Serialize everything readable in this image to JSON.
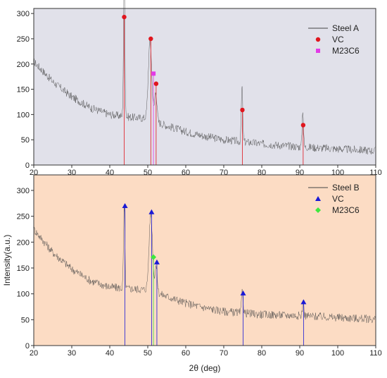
{
  "chart_data": [
    {
      "type": "line",
      "panel": "top",
      "background": "#e1e1ea",
      "xlim": [
        20,
        110
      ],
      "ylim": [
        0,
        310
      ],
      "xticks": [
        20,
        30,
        40,
        50,
        60,
        70,
        80,
        90,
        100,
        110
      ],
      "yticks": [
        0,
        50,
        100,
        150,
        200,
        250,
        300
      ],
      "xticks_labeled": false,
      "legend_position": "top-right",
      "series": [
        {
          "name": "Steel A",
          "kind": "line",
          "color": "#444444",
          "baseline": [
            [
              20,
              205
            ],
            [
              25,
              165
            ],
            [
              30,
              135
            ],
            [
              35,
              113
            ],
            [
              40,
              100
            ],
            [
              45,
              95
            ],
            [
              50,
              92
            ],
            [
              55,
              78
            ],
            [
              60,
              66
            ],
            [
              65,
              57
            ],
            [
              70,
              50
            ],
            [
              80,
              42
            ],
            [
              90,
              36
            ],
            [
              100,
              32
            ],
            [
              110,
              28
            ]
          ],
          "peaks": [
            [
              43.8,
              290,
              0.18
            ],
            [
              50.6,
              155,
              0.45
            ],
            [
              52.1,
              60,
              0.3
            ],
            [
              74.8,
              110,
              0.18
            ],
            [
              90.8,
              75,
              0.18
            ]
          ],
          "noise": 8
        },
        {
          "name": "VC",
          "kind": "marker",
          "marker": "circle",
          "color": "#e0161e",
          "x": [
            43.8,
            50.8,
            52.2,
            74.9,
            90.9
          ],
          "y": [
            293,
            250,
            161,
            109,
            79
          ]
        },
        {
          "name": "M23C6",
          "kind": "marker",
          "marker": "square",
          "color": "#e23be6",
          "x": [
            51.5
          ],
          "y": [
            181
          ]
        }
      ]
    },
    {
      "type": "line",
      "panel": "bottom",
      "background": "#fcdcc4",
      "xlim": [
        20,
        110
      ],
      "ylim": [
        0,
        330
      ],
      "xticks": [
        20,
        30,
        40,
        50,
        60,
        70,
        80,
        90,
        100,
        110
      ],
      "yticks": [
        0,
        50,
        100,
        150,
        200,
        250,
        300
      ],
      "xticks_labeled": true,
      "xlabel": "2θ (deg)",
      "ylabel": "Intensity(a.u.)",
      "legend_position": "top-right",
      "series": [
        {
          "name": "Steel B",
          "kind": "line",
          "color": "#444444",
          "baseline": [
            [
              20,
              225
            ],
            [
              25,
              180
            ],
            [
              30,
              148
            ],
            [
              35,
              125
            ],
            [
              40,
              113
            ],
            [
              45,
              110
            ],
            [
              50,
              108
            ],
            [
              55,
              95
            ],
            [
              60,
              82
            ],
            [
              65,
              73
            ],
            [
              70,
              66
            ],
            [
              80,
              60
            ],
            [
              90,
              58
            ],
            [
              100,
              54
            ],
            [
              110,
              51
            ]
          ],
          "peaks": [
            [
              43.8,
              160,
              0.18
            ],
            [
              50.8,
              150,
              0.45
            ],
            [
              52.2,
              50,
              0.3
            ],
            [
              74.9,
              45,
              0.2
            ],
            [
              90.9,
              30,
              0.18
            ]
          ],
          "noise": 8
        },
        {
          "name": "VC",
          "kind": "marker",
          "marker": "triangle",
          "color": "#1a1ad6",
          "x": [
            44.0,
            51.0,
            52.4,
            75.1,
            91.0
          ],
          "y": [
            270,
            258,
            161,
            101,
            84
          ]
        },
        {
          "name": "M23C6",
          "kind": "marker",
          "marker": "diamond",
          "color": "#3ee83e",
          "x": [
            51.5
          ],
          "y": [
            171
          ]
        }
      ]
    }
  ]
}
